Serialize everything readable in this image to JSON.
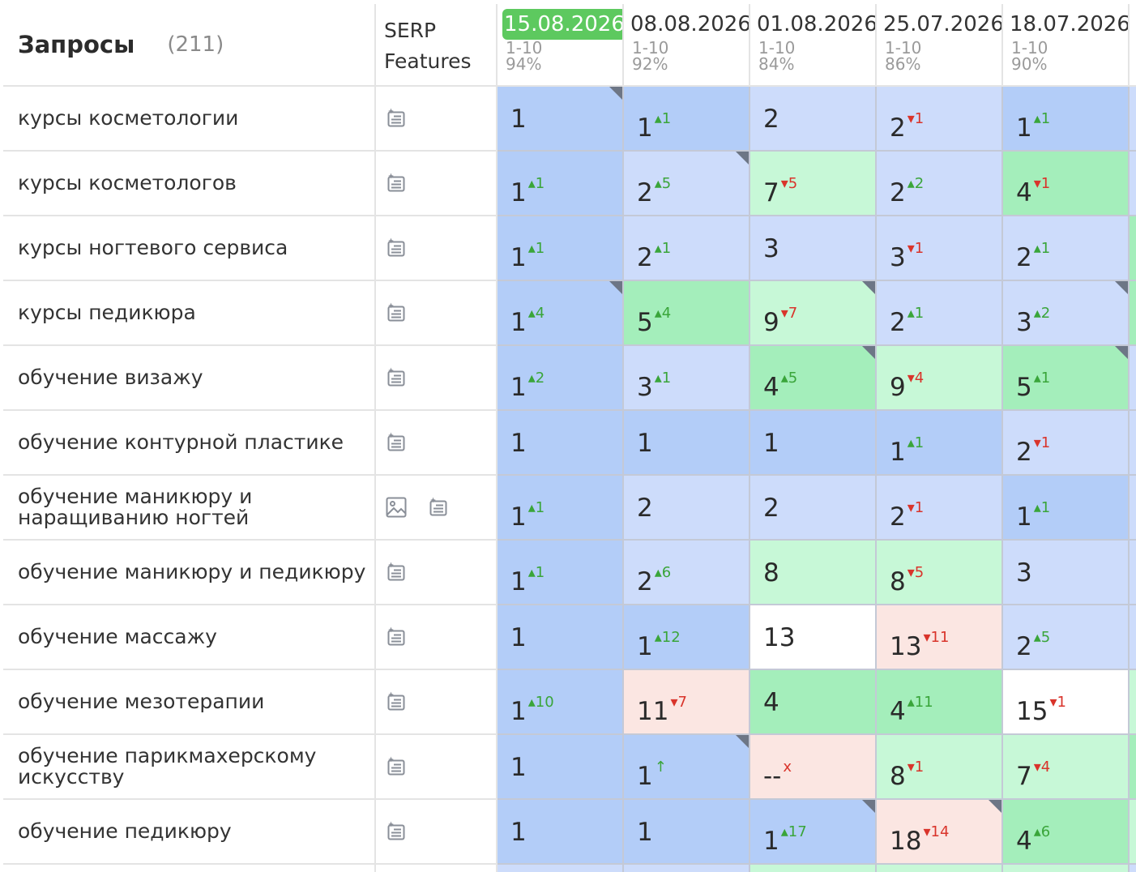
{
  "header": {
    "queries_title": "Запросы",
    "queries_count": "(211)",
    "serp_line1": "SERP",
    "serp_line2": "Features"
  },
  "dates": [
    {
      "date": "15.08.2026",
      "range": "1-10",
      "percent": "94%",
      "current": true
    },
    {
      "date": "08.08.2026",
      "range": "1-10",
      "percent": "92%",
      "current": false
    },
    {
      "date": "01.08.2026",
      "range": "1-10",
      "percent": "84%",
      "current": false
    },
    {
      "date": "25.07.2026",
      "range": "1-10",
      "percent": "86%",
      "current": false
    },
    {
      "date": "18.07.2026",
      "range": "1-10",
      "percent": "90%",
      "current": false
    }
  ],
  "icons": {
    "snippet": "snippet-icon",
    "image": "image-icon"
  },
  "rows": [
    {
      "query": "курсы косметологии",
      "serp": [
        "snippet"
      ],
      "cells": [
        {
          "v": "1",
          "c": "",
          "d": "",
          "t": "b1",
          "k": true
        },
        {
          "v": "1",
          "c": "1",
          "d": "up",
          "t": "b1",
          "k": false
        },
        {
          "v": "2",
          "c": "",
          "d": "",
          "t": "b2",
          "k": false
        },
        {
          "v": "2",
          "c": "1",
          "d": "down",
          "t": "b2",
          "k": false
        },
        {
          "v": "1",
          "c": "1",
          "d": "up",
          "t": "b1",
          "k": false
        }
      ]
    },
    {
      "query": "курсы косметологов",
      "serp": [
        "snippet"
      ],
      "cells": [
        {
          "v": "1",
          "c": "1",
          "d": "up",
          "t": "b1",
          "k": false
        },
        {
          "v": "2",
          "c": "5",
          "d": "up",
          "t": "b2",
          "k": true
        },
        {
          "v": "7",
          "c": "5",
          "d": "down",
          "t": "g2",
          "k": false
        },
        {
          "v": "2",
          "c": "2",
          "d": "up",
          "t": "b2",
          "k": false
        },
        {
          "v": "4",
          "c": "1",
          "d": "down",
          "t": "g1",
          "k": false
        }
      ]
    },
    {
      "query": "курсы ногтевого сервиса",
      "serp": [
        "snippet"
      ],
      "cells": [
        {
          "v": "1",
          "c": "1",
          "d": "up",
          "t": "b1",
          "k": false
        },
        {
          "v": "2",
          "c": "1",
          "d": "up",
          "t": "b2",
          "k": false
        },
        {
          "v": "3",
          "c": "",
          "d": "",
          "t": "b2",
          "k": false
        },
        {
          "v": "3",
          "c": "1",
          "d": "down",
          "t": "b2",
          "k": false
        },
        {
          "v": "2",
          "c": "1",
          "d": "up",
          "t": "b2",
          "k": false
        }
      ]
    },
    {
      "query": "курсы педикюра",
      "serp": [
        "snippet"
      ],
      "cells": [
        {
          "v": "1",
          "c": "4",
          "d": "up",
          "t": "b1",
          "k": true
        },
        {
          "v": "5",
          "c": "4",
          "d": "up",
          "t": "g1",
          "k": false
        },
        {
          "v": "9",
          "c": "7",
          "d": "down",
          "t": "g2",
          "k": true
        },
        {
          "v": "2",
          "c": "1",
          "d": "up",
          "t": "b2",
          "k": false
        },
        {
          "v": "3",
          "c": "2",
          "d": "up",
          "t": "b2",
          "k": true
        }
      ]
    },
    {
      "query": "обучение визажу",
      "serp": [
        "snippet"
      ],
      "cells": [
        {
          "v": "1",
          "c": "2",
          "d": "up",
          "t": "b1",
          "k": false
        },
        {
          "v": "3",
          "c": "1",
          "d": "up",
          "t": "b2",
          "k": false
        },
        {
          "v": "4",
          "c": "5",
          "d": "up",
          "t": "g1",
          "k": true
        },
        {
          "v": "9",
          "c": "4",
          "d": "down",
          "t": "g2",
          "k": false
        },
        {
          "v": "5",
          "c": "1",
          "d": "up",
          "t": "g1",
          "k": true
        }
      ]
    },
    {
      "query": "обучение контурной пластике",
      "serp": [
        "snippet"
      ],
      "cells": [
        {
          "v": "1",
          "c": "",
          "d": "",
          "t": "b1",
          "k": false
        },
        {
          "v": "1",
          "c": "",
          "d": "",
          "t": "b1",
          "k": false
        },
        {
          "v": "1",
          "c": "",
          "d": "",
          "t": "b1",
          "k": false
        },
        {
          "v": "1",
          "c": "1",
          "d": "up",
          "t": "b1",
          "k": false
        },
        {
          "v": "2",
          "c": "1",
          "d": "down",
          "t": "b2",
          "k": false
        }
      ]
    },
    {
      "query": "обучение маникюру и наращиванию ногтей",
      "serp": [
        "image",
        "snippet"
      ],
      "cells": [
        {
          "v": "1",
          "c": "1",
          "d": "up",
          "t": "b1",
          "k": false
        },
        {
          "v": "2",
          "c": "",
          "d": "",
          "t": "b2",
          "k": false
        },
        {
          "v": "2",
          "c": "",
          "d": "",
          "t": "b2",
          "k": false
        },
        {
          "v": "2",
          "c": "1",
          "d": "down",
          "t": "b2",
          "k": false
        },
        {
          "v": "1",
          "c": "1",
          "d": "up",
          "t": "b1",
          "k": false
        }
      ]
    },
    {
      "query": "обучение маникюру и педикюру",
      "serp": [
        "snippet"
      ],
      "cells": [
        {
          "v": "1",
          "c": "1",
          "d": "up",
          "t": "b1",
          "k": false
        },
        {
          "v": "2",
          "c": "6",
          "d": "up",
          "t": "b2",
          "k": false
        },
        {
          "v": "8",
          "c": "",
          "d": "",
          "t": "g2",
          "k": false
        },
        {
          "v": "8",
          "c": "5",
          "d": "down",
          "t": "g2",
          "k": false
        },
        {
          "v": "3",
          "c": "",
          "d": "",
          "t": "b2",
          "k": false
        }
      ]
    },
    {
      "query": "обучение массажу",
      "serp": [
        "snippet"
      ],
      "cells": [
        {
          "v": "1",
          "c": "",
          "d": "",
          "t": "b1",
          "k": false
        },
        {
          "v": "1",
          "c": "12",
          "d": "up",
          "t": "b1",
          "k": false
        },
        {
          "v": "13",
          "c": "",
          "d": "",
          "t": "w",
          "k": false
        },
        {
          "v": "13",
          "c": "11",
          "d": "down",
          "t": "p",
          "k": false
        },
        {
          "v": "2",
          "c": "5",
          "d": "up",
          "t": "b2",
          "k": false
        }
      ]
    },
    {
      "query": "обучение мезотерапии",
      "serp": [
        "snippet"
      ],
      "cells": [
        {
          "v": "1",
          "c": "10",
          "d": "up",
          "t": "b1",
          "k": false
        },
        {
          "v": "11",
          "c": "7",
          "d": "down",
          "t": "p",
          "k": false
        },
        {
          "v": "4",
          "c": "",
          "d": "",
          "t": "g1",
          "k": false
        },
        {
          "v": "4",
          "c": "11",
          "d": "up",
          "t": "g1",
          "k": false
        },
        {
          "v": "15",
          "c": "1",
          "d": "down",
          "t": "w",
          "k": false
        }
      ]
    },
    {
      "query": "обучение парикмахерскому искусству",
      "serp": [
        "snippet"
      ],
      "cells": [
        {
          "v": "1",
          "c": "",
          "d": "",
          "t": "b1",
          "k": false
        },
        {
          "v": "1",
          "c": "↑",
          "d": "up",
          "t": "b1",
          "k": true
        },
        {
          "v": "--",
          "c": "x",
          "d": "down",
          "t": "p",
          "k": false
        },
        {
          "v": "8",
          "c": "1",
          "d": "down",
          "t": "g2",
          "k": false
        },
        {
          "v": "7",
          "c": "4",
          "d": "down",
          "t": "g2",
          "k": false
        }
      ]
    },
    {
      "query": "обучение педикюру",
      "serp": [
        "snippet"
      ],
      "cells": [
        {
          "v": "1",
          "c": "",
          "d": "",
          "t": "b1",
          "k": false
        },
        {
          "v": "1",
          "c": "",
          "d": "",
          "t": "b1",
          "k": false
        },
        {
          "v": "1",
          "c": "17",
          "d": "up",
          "t": "b1",
          "k": true
        },
        {
          "v": "18",
          "c": "14",
          "d": "down",
          "t": "p",
          "k": true
        },
        {
          "v": "4",
          "c": "6",
          "d": "up",
          "t": "g1",
          "k": false
        }
      ]
    }
  ],
  "edge_colors": [
    "b2",
    "b2",
    "b2",
    "g1",
    "g1",
    "b2",
    "b2",
    "b2",
    "b2",
    "b2",
    "g2",
    "g1",
    "g2"
  ],
  "bottom_colors": [
    "b2",
    "b2",
    "g2",
    "g2",
    "g2"
  ]
}
